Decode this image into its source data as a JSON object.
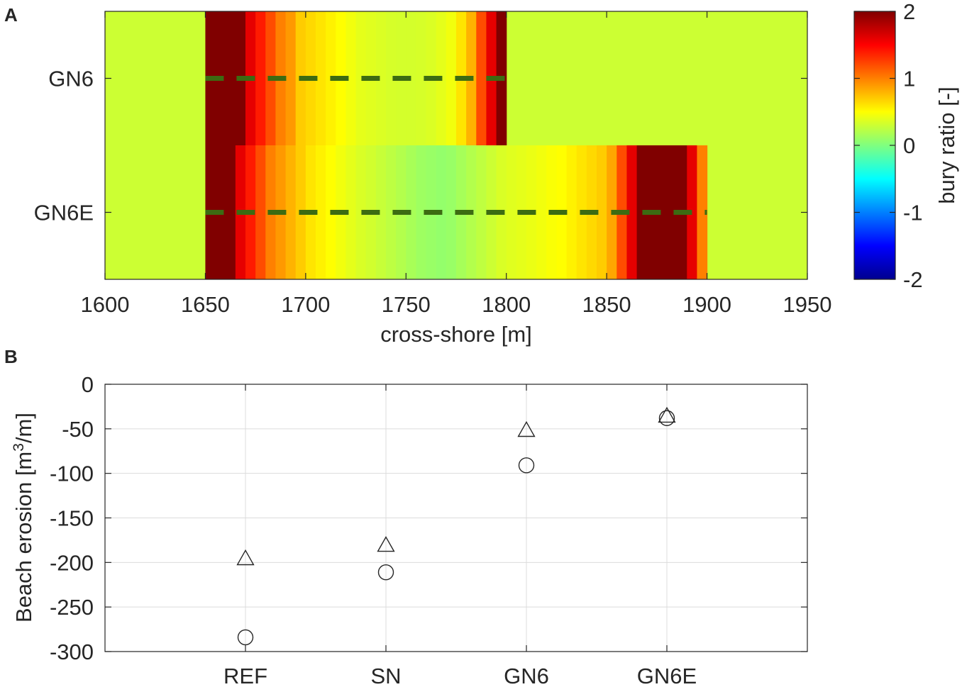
{
  "chart_data": [
    {
      "type": "heatmap",
      "panel_label": "A",
      "xlabel": "cross-shore [m]",
      "xlim": [
        1600,
        1950
      ],
      "xticks": [
        1600,
        1650,
        1700,
        1750,
        1800,
        1850,
        1900,
        1950
      ],
      "rows": [
        "GN6",
        "GN6E"
      ],
      "background_value": 0.3,
      "grid": false,
      "colorbar": {
        "label": "bury ratio [-]",
        "range": [
          -2,
          2
        ],
        "ticks": [
          2,
          1,
          0,
          -1,
          -2
        ],
        "colormap": "jet",
        "location": "right"
      },
      "series": [
        {
          "name": "GN6",
          "x_start": 1650,
          "x_end": 1800,
          "dx": 5,
          "values": [
            2,
            2,
            2,
            2,
            1.6,
            1.4,
            1.2,
            1.0,
            0.9,
            0.7,
            0.65,
            0.6,
            0.55,
            0.5,
            0.45,
            0.4,
            0.38,
            0.36,
            0.34,
            0.33,
            0.33,
            0.34,
            0.36,
            0.4,
            0.45,
            0.6,
            0.8,
            1.2,
            1.6,
            2
          ]
        },
        {
          "name": "GN6E",
          "x_start": 1650,
          "x_end": 1900,
          "dx": 5,
          "values": [
            2,
            2,
            2,
            1.6,
            1.4,
            1.2,
            1.0,
            0.9,
            0.8,
            0.7,
            0.6,
            0.55,
            0.5,
            0.45,
            0.4,
            0.35,
            0.32,
            0.28,
            0.24,
            0.2,
            0.16,
            0.12,
            0.1,
            0.08,
            0.1,
            0.15,
            0.2,
            0.25,
            0.3,
            0.35,
            0.38,
            0.4,
            0.42,
            0.45,
            0.48,
            0.5,
            0.55,
            0.6,
            0.65,
            0.7,
            0.85,
            1.2,
            1.6,
            2,
            2,
            2,
            2,
            2,
            1.6,
            1.0
          ]
        }
      ]
    },
    {
      "type": "scatter",
      "panel_label": "B",
      "ylabel": "Beach erosion [m",
      "ylabel_sup": "3",
      "ylabel_tail": "/m]",
      "categories": [
        "REF",
        "SN",
        "GN6",
        "GN6E"
      ],
      "ylim": [
        -300,
        0
      ],
      "yticks": [
        0,
        -50,
        -100,
        -150,
        -200,
        -250,
        -300
      ],
      "grid": true,
      "series": [
        {
          "marker": "circle",
          "values": [
            -284,
            -211,
            -91,
            -38
          ]
        },
        {
          "marker": "triangle",
          "values": [
            -196,
            -181,
            -52,
            -36
          ]
        }
      ]
    }
  ]
}
